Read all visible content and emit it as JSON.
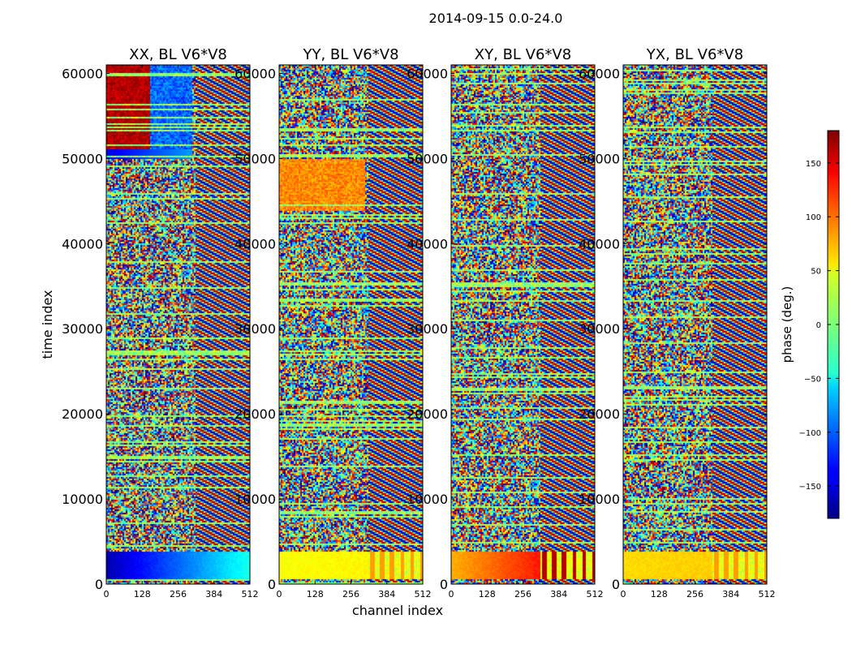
{
  "suptitle": "2014-09-15 0.0-24.0",
  "chart_data": {
    "type": "heatmap",
    "x_label": "channel index",
    "y_label": "time index",
    "xlim": [
      0,
      512
    ],
    "ylim": [
      0,
      61000
    ],
    "x_ticks": [
      0,
      128,
      256,
      384,
      512
    ],
    "y_ticks": [
      0,
      10000,
      20000,
      30000,
      40000,
      50000,
      60000
    ],
    "panels": [
      {
        "title": "XX, BL V6*V8",
        "pol": "XX"
      },
      {
        "title": "YY, BL V6*V8",
        "pol": "YY"
      },
      {
        "title": "XY, BL V6*V8",
        "pol": "XY"
      },
      {
        "title": "YX, BL V6*V8",
        "pol": "YX"
      }
    ],
    "colorbar": {
      "label": "phase (deg.)",
      "range": [
        -180,
        180
      ],
      "ticks": [
        -150,
        -100,
        -50,
        0,
        50,
        100,
        150
      ],
      "tick_labels": [
        "−150",
        "−100",
        "−50",
        "0",
        "50",
        "100",
        "150"
      ],
      "colormap": "jet"
    }
  }
}
